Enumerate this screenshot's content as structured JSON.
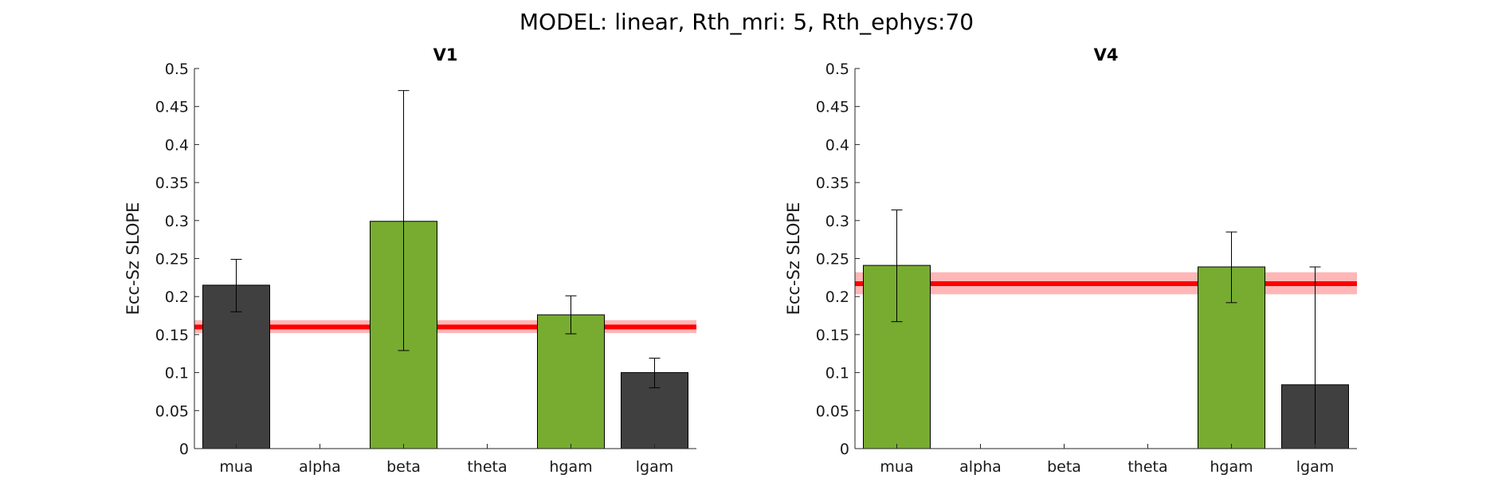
{
  "figure": {
    "suptitle": "MODEL: linear, Rth_mri: 5, Rth_ephys:70"
  },
  "colors": {
    "significant": "#77ac30",
    "nonsignificant": "#404040",
    "reference_line": "#ff0000",
    "reference_band": "#ffb6b6"
  },
  "chart_data": [
    {
      "type": "bar",
      "title": "V1",
      "xlabel": "",
      "ylabel": "Ecc-Sz SLOPE",
      "ylim": [
        0,
        0.5
      ],
      "yticks": [
        0,
        0.05,
        0.1,
        0.15,
        0.2,
        0.25,
        0.3,
        0.35,
        0.4,
        0.45,
        0.5
      ],
      "ytick_labels": [
        "0",
        "0.05",
        "0.1",
        "0.15",
        "0.2",
        "0.25",
        "0.3",
        "0.35",
        "0.4",
        "0.45",
        "0.5"
      ],
      "categories": [
        "mua",
        "alpha",
        "beta",
        "theta",
        "hgam",
        "lgam"
      ],
      "values": [
        0.215,
        null,
        0.299,
        null,
        0.176,
        0.1
      ],
      "err_low": [
        0.18,
        null,
        0.129,
        null,
        0.151,
        0.08
      ],
      "err_high": [
        0.249,
        null,
        0.471,
        null,
        0.201,
        0.119
      ],
      "bar_colors": [
        "nonsignificant",
        null,
        "significant",
        null,
        "significant",
        "nonsignificant"
      ],
      "reference": {
        "value": 0.16,
        "band": [
          0.152,
          0.169
        ]
      },
      "grid": false
    },
    {
      "type": "bar",
      "title": "V4",
      "xlabel": "",
      "ylabel": "Ecc-Sz SLOPE",
      "ylim": [
        0,
        0.5
      ],
      "yticks": [
        0,
        0.05,
        0.1,
        0.15,
        0.2,
        0.25,
        0.3,
        0.35,
        0.4,
        0.45,
        0.5
      ],
      "ytick_labels": [
        "0",
        "0.05",
        "0.1",
        "0.15",
        "0.2",
        "0.25",
        "0.3",
        "0.35",
        "0.4",
        "0.45",
        "0.5"
      ],
      "categories": [
        "mua",
        "alpha",
        "beta",
        "theta",
        "hgam",
        "lgam"
      ],
      "values": [
        0.241,
        null,
        null,
        null,
        0.239,
        0.084
      ],
      "err_low": [
        0.167,
        null,
        null,
        null,
        0.192,
        0.0
      ],
      "err_high": [
        0.314,
        null,
        null,
        null,
        0.285,
        0.239
      ],
      "bar_colors": [
        "significant",
        null,
        null,
        null,
        "significant",
        "nonsignificant"
      ],
      "reference": {
        "value": 0.217,
        "band": [
          0.203,
          0.232
        ]
      },
      "grid": false
    }
  ]
}
